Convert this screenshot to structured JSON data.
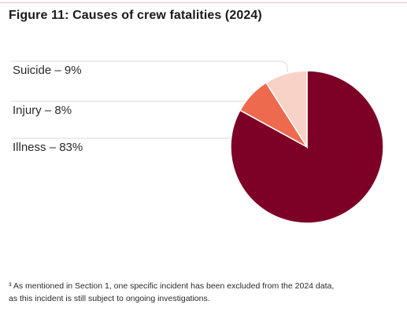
{
  "figure": {
    "title": "Figure 11: Causes of crew fatalities (2024)"
  },
  "chart_data": {
    "type": "pie",
    "title": "Figure 11: Causes of crew fatalities (2024)",
    "slices": [
      {
        "name": "Illness",
        "value": 83,
        "label": "Illness – 83%",
        "color": "#7d0026"
      },
      {
        "name": "Injury",
        "value": 8,
        "label": "Injury – 8%",
        "color": "#ee6a4e"
      },
      {
        "name": "Suicide",
        "value": 9,
        "label": "Suicide – 9%",
        "color": "#f9d2c7"
      }
    ],
    "legend_placement": "left",
    "start_angle_deg": 0,
    "direction": "clockwise"
  },
  "footnote": {
    "line1": "³ As mentioned in Section 1, one specific incident has been excluded from the 2024 data,",
    "line2": "as this incident is still subject to ongoing investigations."
  }
}
